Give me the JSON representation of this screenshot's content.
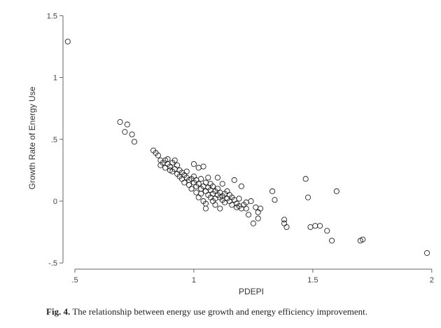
{
  "chart_data": {
    "type": "scatter",
    "xlabel": "PDEPI",
    "ylabel": "Growth Rate of Energy Use",
    "xlim": [
      0.45,
      2.03
    ],
    "ylim": [
      -0.55,
      1.57
    ],
    "xticks": [
      {
        "v": 0.5,
        "label": ".5"
      },
      {
        "v": 1,
        "label": "1"
      },
      {
        "v": 1.5,
        "label": "1.5"
      },
      {
        "v": 2,
        "label": "2"
      }
    ],
    "yticks": [
      {
        "v": -0.5,
        "label": "-.5"
      },
      {
        "v": 0,
        "label": "0"
      },
      {
        "v": 0.5,
        "label": ".5"
      },
      {
        "v": 1,
        "label": "1"
      },
      {
        "v": 1.5,
        "label": "1.5"
      }
    ],
    "grid": false,
    "marker": "hollow-circle",
    "marker_color": "#222222",
    "points": [
      [
        0.47,
        1.29
      ],
      [
        0.69,
        0.64
      ],
      [
        0.71,
        0.56
      ],
      [
        0.72,
        0.62
      ],
      [
        0.74,
        0.54
      ],
      [
        0.75,
        0.48
      ],
      [
        0.83,
        0.41
      ],
      [
        0.84,
        0.39
      ],
      [
        0.85,
        0.37
      ],
      [
        0.86,
        0.33
      ],
      [
        0.86,
        0.29
      ],
      [
        0.87,
        0.31
      ],
      [
        0.88,
        0.33
      ],
      [
        0.88,
        0.27
      ],
      [
        0.89,
        0.3
      ],
      [
        0.89,
        0.34
      ],
      [
        0.9,
        0.28
      ],
      [
        0.9,
        0.25
      ],
      [
        0.91,
        0.31
      ],
      [
        0.91,
        0.24
      ],
      [
        0.92,
        0.33
      ],
      [
        0.92,
        0.26
      ],
      [
        0.93,
        0.22
      ],
      [
        0.93,
        0.29
      ],
      [
        0.94,
        0.2
      ],
      [
        0.94,
        0.25
      ],
      [
        0.95,
        0.23
      ],
      [
        0.95,
        0.18
      ],
      [
        0.96,
        0.21
      ],
      [
        0.96,
        0.15
      ],
      [
        0.97,
        0.19
      ],
      [
        0.97,
        0.24
      ],
      [
        0.98,
        0.17
      ],
      [
        0.98,
        0.13
      ],
      [
        0.99,
        0.18
      ],
      [
        0.99,
        0.1
      ],
      [
        1.0,
        0.15
      ],
      [
        1.0,
        0.2
      ],
      [
        1.0,
        0.3
      ],
      [
        1.01,
        0.12
      ],
      [
        1.01,
        0.07
      ],
      [
        1.01,
        0.17
      ],
      [
        1.02,
        0.14
      ],
      [
        1.02,
        0.27
      ],
      [
        1.02,
        0.03
      ],
      [
        1.03,
        0.1
      ],
      [
        1.03,
        0.18
      ],
      [
        1.03,
        0.06
      ],
      [
        1.04,
        0.12
      ],
      [
        1.04,
        0.28
      ],
      [
        1.04,
        0.0
      ],
      [
        1.05,
        0.08
      ],
      [
        1.05,
        0.15
      ],
      [
        1.05,
        -0.02
      ],
      [
        1.05,
        -0.06
      ],
      [
        1.06,
        0.05
      ],
      [
        1.06,
        0.11
      ],
      [
        1.06,
        0.19
      ],
      [
        1.07,
        0.03
      ],
      [
        1.07,
        0.09
      ],
      [
        1.07,
        0.14
      ],
      [
        1.08,
        0.06
      ],
      [
        1.08,
        0.0
      ],
      [
        1.08,
        0.12
      ],
      [
        1.09,
        0.08
      ],
      [
        1.09,
        0.02
      ],
      [
        1.09,
        -0.03
      ],
      [
        1.1,
        0.05
      ],
      [
        1.1,
        0.1
      ],
      [
        1.1,
        0.19
      ],
      [
        1.11,
        0.03
      ],
      [
        1.11,
        0.07
      ],
      [
        1.11,
        -0.06
      ],
      [
        1.12,
        0.04
      ],
      [
        1.12,
        0.01
      ],
      [
        1.12,
        0.14
      ],
      [
        1.13,
        0.06
      ],
      [
        1.13,
        -0.01
      ],
      [
        1.14,
        0.02
      ],
      [
        1.14,
        0.08
      ],
      [
        1.15,
        0.0
      ],
      [
        1.15,
        0.05
      ],
      [
        1.16,
        -0.03
      ],
      [
        1.16,
        0.03
      ],
      [
        1.17,
        0.01
      ],
      [
        1.17,
        0.17
      ],
      [
        1.18,
        -0.05
      ],
      [
        1.18,
        -0.02
      ],
      [
        1.19,
        0.02
      ],
      [
        1.19,
        -0.04
      ],
      [
        1.2,
        -0.06
      ],
      [
        1.2,
        0.12
      ],
      [
        1.21,
        -0.03
      ],
      [
        1.22,
        -0.01
      ],
      [
        1.22,
        -0.06
      ],
      [
        1.23,
        -0.11
      ],
      [
        1.24,
        0.0
      ],
      [
        1.25,
        -0.18
      ],
      [
        1.26,
        -0.05
      ],
      [
        1.27,
        -0.09
      ],
      [
        1.27,
        -0.14
      ],
      [
        1.28,
        -0.06
      ],
      [
        1.33,
        0.08
      ],
      [
        1.34,
        0.01
      ],
      [
        1.38,
        -0.15
      ],
      [
        1.38,
        -0.18
      ],
      [
        1.39,
        -0.21
      ],
      [
        1.47,
        0.18
      ],
      [
        1.48,
        0.03
      ],
      [
        1.49,
        -0.21
      ],
      [
        1.51,
        -0.2
      ],
      [
        1.53,
        -0.2
      ],
      [
        1.56,
        -0.24
      ],
      [
        1.58,
        -0.32
      ],
      [
        1.6,
        0.08
      ],
      [
        1.7,
        -0.32
      ],
      [
        1.71,
        -0.31
      ],
      [
        1.98,
        -0.42
      ]
    ]
  },
  "caption": {
    "label": "Fig. 4.",
    "text": " The relationship between energy use growth and energy efficiency improvement."
  }
}
